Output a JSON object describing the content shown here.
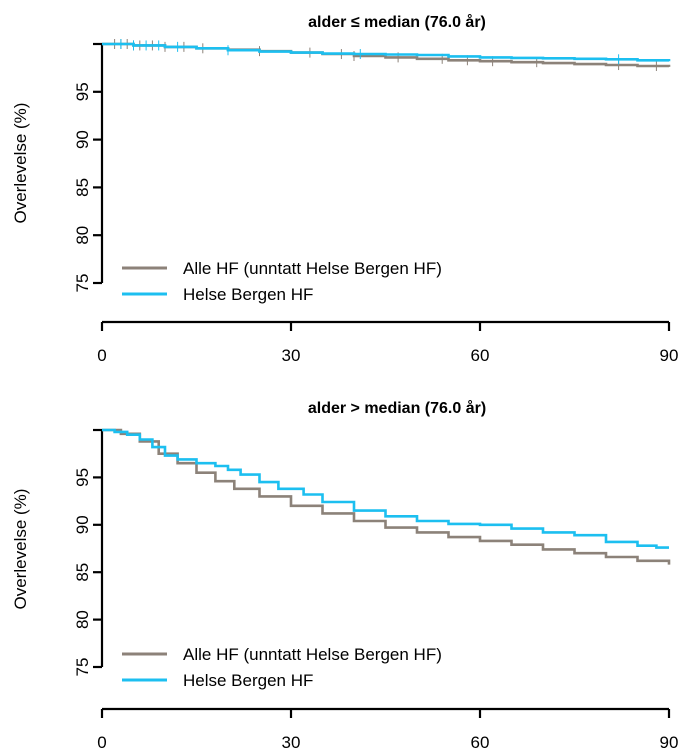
{
  "colors": {
    "alle_hf": "#8c8279",
    "helse_bergen": "#1cbff0"
  },
  "chart_data": [
    {
      "type": "line",
      "title": "alder ≤ median (76.0 år)",
      "ylabel": "Overlevelse (%)",
      "xlabel": "",
      "xlim": [
        0,
        90
      ],
      "ylim": [
        75,
        100
      ],
      "xticks": [
        0,
        30,
        60,
        90
      ],
      "yticks": [
        75,
        80,
        85,
        90,
        95
      ],
      "legend": "bottom-left",
      "series": [
        {
          "name": "Alle HF (unntatt Helse Bergen HF)",
          "color": "#8c8279",
          "x": [
            0,
            5,
            10,
            15,
            20,
            25,
            30,
            35,
            40,
            45,
            50,
            55,
            60,
            65,
            70,
            75,
            80,
            85,
            90
          ],
          "y": [
            100,
            99.85,
            99.7,
            99.55,
            99.4,
            99.25,
            99.1,
            98.95,
            98.75,
            98.6,
            98.45,
            98.3,
            98.2,
            98.1,
            98.0,
            97.9,
            97.8,
            97.7,
            97.6
          ],
          "censor_x": [
            2,
            3,
            4,
            5,
            6,
            8,
            10,
            13,
            16,
            25,
            33,
            38,
            40,
            47,
            54,
            58,
            62,
            69,
            82,
            88
          ]
        },
        {
          "name": "Helse Bergen HF",
          "color": "#1cbff0",
          "x": [
            0,
            5,
            10,
            15,
            20,
            25,
            30,
            35,
            40,
            45,
            50,
            55,
            60,
            65,
            70,
            75,
            80,
            85,
            90
          ],
          "y": [
            100,
            99.85,
            99.7,
            99.55,
            99.35,
            99.2,
            99.1,
            99.0,
            98.95,
            98.9,
            98.85,
            98.7,
            98.6,
            98.55,
            98.5,
            98.45,
            98.4,
            98.3,
            98.2
          ],
          "censor_x": [
            3,
            5,
            7,
            9,
            12,
            20,
            41,
            82
          ]
        }
      ]
    },
    {
      "type": "line",
      "title": "alder > median (76.0 år)",
      "ylabel": "Overlevelse (%)",
      "xlabel": "",
      "xlim": [
        0,
        90
      ],
      "ylim": [
        75,
        100
      ],
      "xticks": [
        0,
        30,
        60,
        90
      ],
      "yticks": [
        75,
        80,
        85,
        90,
        95
      ],
      "legend": "bottom-left",
      "series": [
        {
          "name": "Alle HF (unntatt Helse Bergen HF)",
          "color": "#8c8279",
          "x": [
            0,
            3,
            6,
            9,
            12,
            15,
            18,
            21,
            25,
            30,
            35,
            40,
            45,
            50,
            55,
            60,
            65,
            70,
            75,
            80,
            85,
            90
          ],
          "y": [
            100,
            99.6,
            98.8,
            97.5,
            96.5,
            95.5,
            94.6,
            93.8,
            93.0,
            92.0,
            91.2,
            90.4,
            89.7,
            89.2,
            88.7,
            88.3,
            87.9,
            87.4,
            87.0,
            86.6,
            86.2,
            85.8
          ],
          "censor_x": []
        },
        {
          "name": "Helse Bergen HF",
          "color": "#1cbff0",
          "x": [
            0,
            2,
            4,
            6,
            8,
            10,
            12,
            15,
            18,
            20,
            22,
            25,
            28,
            32,
            35,
            40,
            45,
            50,
            55,
            60,
            65,
            70,
            75,
            80,
            85,
            88,
            90
          ],
          "y": [
            100,
            99.8,
            99.5,
            99.0,
            98.2,
            97.3,
            96.9,
            96.5,
            96.2,
            95.8,
            95.3,
            94.5,
            93.8,
            93.2,
            92.4,
            91.5,
            90.9,
            90.4,
            90.1,
            90.0,
            89.6,
            89.2,
            88.9,
            88.2,
            87.8,
            87.6,
            87.6
          ],
          "censor_x": []
        }
      ]
    }
  ]
}
